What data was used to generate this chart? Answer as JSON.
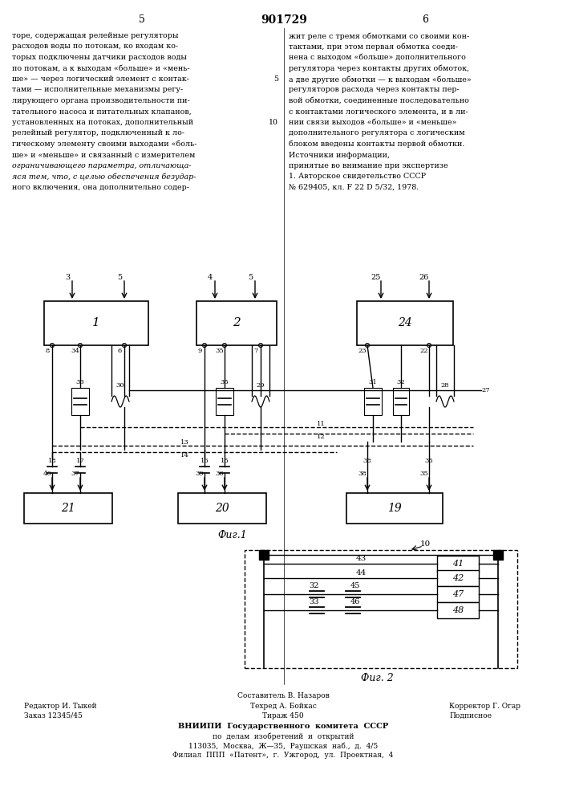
{
  "title": "901729",
  "page_numbers": [
    "5",
    "6"
  ],
  "bg_color": "#ffffff",
  "text_color": "#000000",
  "left_text": "торе, содержащая релейные регуляторы\nрасходов воды по потокам, ко входам ко-\nторых подключены датчики расходов воды\nпо потокам, а к выходам «больше» и «мень-\nше» — через логический элемент с контак-\nтами — исполнительные механизмы регу-\nлирующего органа производительности пи-\nтательного насоса и питательных клапанов,\nустановленных на потоках, дополнительный\nрелейный регулятор, подключенный к ло-\nгическому элементу своими выходами «боль-\nше» и «меньше» и связанный с измерителем\nограничивающего параметра, отличающа-\nяся тем, что, с целью обеспечения безудар-\nного включения, она дополнительно содер-",
  "right_text": "жит реле с тремя обмотками со своими кон-\nтактами, при этом первая обмотка соеди-\nнена с выходом «больше» дополнительного\nрегулятора через контакты других обмоток,\nа две другие обмотки — к выходам «больше»\nрегуляторов расхода через контакты пер-\nвой обмотки, соединенные последовательно\nс контактами логического элемента, и в ли-\nнии связи выходов «больше» и «меньше»\nдополнительного регулятора с логическим\nблоком введены контакты первой обмотки.",
  "sources_text": "Источники информации,\nпринятые во внимание при экспертизе\n1. Авторское свидетельство СССР\n№ 629405, кл. F 22 D 5/32, 1978.",
  "fig1_label": "Фиг.1",
  "fig2_label": "Фиг. 2",
  "footer_line1": "Составитель В. Назаров",
  "footer_line2_left": "Редактор И. Тыкей",
  "footer_line2_mid": "Техред А. Бойкас",
  "footer_line2_right": "Корректор Г. Огар",
  "footer_line3_left": "Заказ 12345/45",
  "footer_line3_mid": "Тираж 450",
  "footer_line3_right": "Подписное",
  "footer_line4": "ВНИИПИ  Государственного  комитета  СССР",
  "footer_line5": "по  делам  изобретений  и  открытий",
  "footer_line6": "113035,  Москва,  Ж—35,  Раушская  наб.,  д.  4/5",
  "footer_line7": "Филиал  ППП  «Патент»,  г.  Ужгород,  ул.  Проектная,  4"
}
